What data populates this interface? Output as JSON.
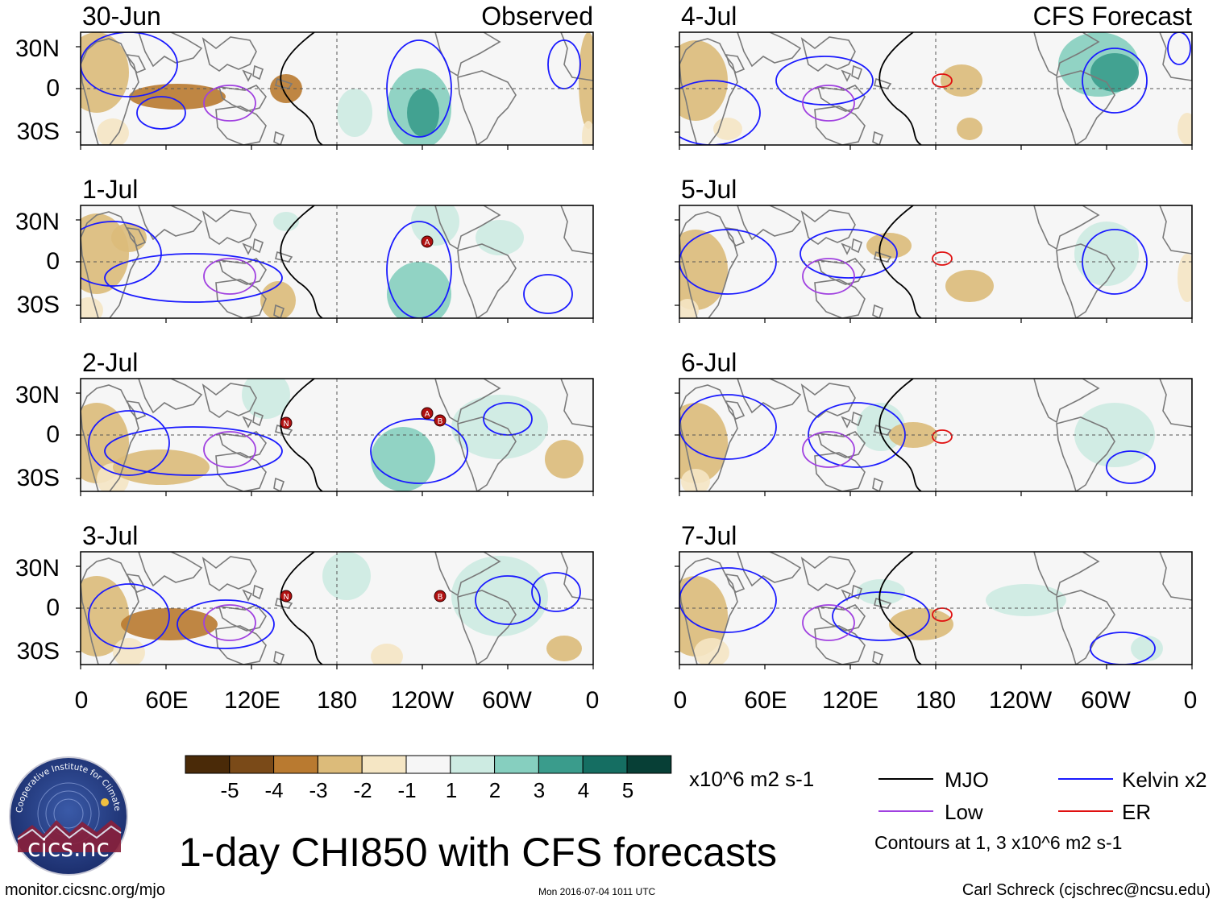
{
  "panels": [
    {
      "date": "30-Jun",
      "tag": "Observed",
      "storms": []
    },
    {
      "date": "1-Jul",
      "tag": "",
      "storms": [
        "A"
      ]
    },
    {
      "date": "2-Jul",
      "tag": "",
      "storms": [
        "N",
        "A",
        "B"
      ]
    },
    {
      "date": "3-Jul",
      "tag": "",
      "storms": [
        "N",
        "B"
      ]
    },
    {
      "date": "4-Jul",
      "tag": "CFS Forecast",
      "storms": []
    },
    {
      "date": "5-Jul",
      "tag": "",
      "storms": []
    },
    {
      "date": "6-Jul",
      "tag": "",
      "storms": []
    },
    {
      "date": "7-Jul",
      "tag": "",
      "storms": []
    }
  ],
  "axes": {
    "lat_labels": [
      "30N",
      "0",
      "30S"
    ],
    "lon_labels": [
      "0",
      "60E",
      "120E",
      "180",
      "120W",
      "60W",
      "0"
    ]
  },
  "colorbar": {
    "labels": [
      "-5",
      "-4",
      "-3",
      "-2",
      "-1",
      "1",
      "2",
      "3",
      "4",
      "5"
    ],
    "colors": [
      "#4a2a08",
      "#7a4a18",
      "#b97a30",
      "#dcbb7a",
      "#f5e6c4",
      "#f6f6f6",
      "#cdebe2",
      "#86cfbf",
      "#3a9c8c",
      "#156e62",
      "#073f36"
    ],
    "units": "x10^6 m2 s-1"
  },
  "legend": {
    "items": [
      {
        "label": "MJO",
        "color": "#000000"
      },
      {
        "label": "Kelvin x2",
        "color": "#1a1aff"
      },
      {
        "label": "Low",
        "color": "#a040e0"
      },
      {
        "label": "ER",
        "color": "#e01010"
      }
    ],
    "contours_note": "Contours at 1, 3 x10^6 m2 s-1"
  },
  "logo": {
    "ring_text": "Cooperative Institute for Climate and Satellites",
    "name": "cics.nc"
  },
  "title": "1-day CHI850 with CFS forecasts",
  "footer": {
    "url": "monitor.cicsnc.org/mjo",
    "timestamp": "Mon 2016-07-04 1011 UTC",
    "credit": "Carl Schreck (cjschrec@ncsu.edu)"
  }
}
